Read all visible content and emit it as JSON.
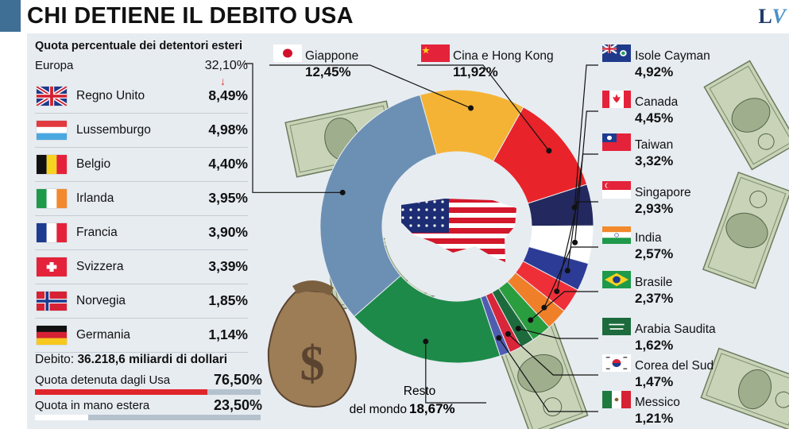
{
  "title": "CHI DETIENE IL DEBITO USA",
  "logo": {
    "l": "L",
    "v": "V"
  },
  "left_panel": {
    "subtitle": "Quota percentuale dei detentori esteri",
    "europe": {
      "label": "Europa",
      "value": "32,10%"
    },
    "countries": [
      {
        "label": "Regno Unito",
        "value": "8,49%",
        "flag": "uk"
      },
      {
        "label": "Lussemburgo",
        "value": "4,98%",
        "flag": "lux"
      },
      {
        "label": "Belgio",
        "value": "4,40%",
        "flag": "bel"
      },
      {
        "label": "Irlanda",
        "value": "3,95%",
        "flag": "irl"
      },
      {
        "label": "Francia",
        "value": "3,90%",
        "flag": "fra"
      },
      {
        "label": "Svizzera",
        "value": "3,39%",
        "flag": "sui"
      },
      {
        "label": "Norvegia",
        "value": "1,85%",
        "flag": "nor"
      },
      {
        "label": "Germania",
        "value": "1,14%",
        "flag": "ger"
      }
    ],
    "debt_label": "Debito:",
    "debt_value": "36.218,6 miliardi di dollari",
    "usa_share": {
      "label": "Quota detenuta dagli Usa",
      "value": "76,50%",
      "fraction": 0.765,
      "color": "#e0262b"
    },
    "foreign_share": {
      "label": "Quota in mano estera",
      "value": "23,50%",
      "fraction": 0.235,
      "color": "#ffffff"
    }
  },
  "chart_data": {
    "type": "pie",
    "donut": true,
    "slices": [
      {
        "name": "Giappone",
        "value": 12.45,
        "label": "12,45%",
        "color": "#f5b335",
        "flag": "jpn"
      },
      {
        "name": "Cina e Hong Kong",
        "value": 11.92,
        "label": "11,92%",
        "color": "#e8232a",
        "flag": "chn"
      },
      {
        "name": "Isole Cayman",
        "value": 4.92,
        "label": "4,92%",
        "color": "#23285e",
        "flag": "cay"
      },
      {
        "name": "Canada",
        "value": 4.45,
        "label": "4,45%",
        "color": "#ffffff",
        "flag": "can"
      },
      {
        "name": "Taiwan",
        "value": 3.32,
        "label": "3,32%",
        "color": "#2c3b95",
        "flag": "twn"
      },
      {
        "name": "Singapore",
        "value": 2.93,
        "label": "2,93%",
        "color": "#ef2f38",
        "flag": "sgp"
      },
      {
        "name": "India",
        "value": 2.57,
        "label": "2,57%",
        "color": "#f07f2a",
        "flag": "ind"
      },
      {
        "name": "Brasile",
        "value": 2.37,
        "label": "2,37%",
        "color": "#2a9d3f",
        "flag": "bra"
      },
      {
        "name": "Arabia Saudita",
        "value": 1.62,
        "label": "1,62%",
        "color": "#1d6b3c",
        "flag": "ksa"
      },
      {
        "name": "Corea del Sud",
        "value": 1.47,
        "label": "1,47%",
        "color": "#d9263a",
        "flag": "kor"
      },
      {
        "name": "Messico",
        "value": 1.21,
        "label": "1,21%",
        "color": "#4f5db0",
        "flag": "mex"
      },
      {
        "name": "Resto del mondo",
        "value": 18.67,
        "label": "18,67%",
        "color": "#1e8a4a",
        "flag": ""
      },
      {
        "name": "Europa",
        "value": 32.1,
        "label": "32,10%",
        "color": "#6c90b4",
        "flag": ""
      }
    ],
    "resto_label_1": "Resto",
    "resto_label_2": "del mondo"
  }
}
